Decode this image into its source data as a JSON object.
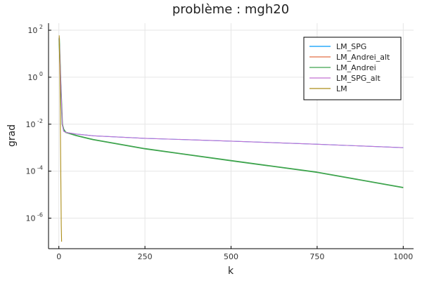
{
  "chart_data": {
    "type": "line",
    "title": "problème : mgh20",
    "xlabel": "k",
    "ylabel": "grad",
    "xlim": [
      -30,
      1030
    ],
    "ylim_log10": [
      -7.3,
      2.3
    ],
    "yscale": "log",
    "x_ticks": [
      0,
      250,
      500,
      750,
      1000
    ],
    "x_tick_labels": [
      "0",
      "250",
      "500",
      "750",
      "1000"
    ],
    "y_tick_exponents": [
      2,
      0,
      -2,
      -4,
      -6
    ],
    "y_tick_base": "10",
    "grid": true,
    "legend_position": "top-right",
    "series": [
      {
        "name": "LM_SPG",
        "color": "#009af9",
        "x": [
          1,
          5,
          10,
          14,
          20,
          50,
          100,
          250,
          500,
          750,
          1000
        ],
        "y": [
          50,
          1,
          0.01,
          0.005,
          0.0045,
          0.0038,
          0.0032,
          0.0025,
          0.0019,
          0.0014,
          0.001
        ]
      },
      {
        "name": "LM_Andrei_alt",
        "color": "#e26f46",
        "x": [
          1,
          5,
          10,
          14,
          20,
          50,
          100,
          250,
          500,
          750,
          1000
        ],
        "y": [
          45,
          0.8,
          0.01,
          0.006,
          0.0045,
          0.0033,
          0.0022,
          0.0009,
          0.00028,
          9e-05,
          2e-05
        ]
      },
      {
        "name": "LM_Andrei",
        "color": "#3da44d",
        "x": [
          1,
          5,
          10,
          14,
          20,
          50,
          100,
          250,
          500,
          750,
          1000
        ],
        "y": [
          45,
          0.8,
          0.01,
          0.006,
          0.0045,
          0.0033,
          0.0022,
          0.0009,
          0.00028,
          9e-05,
          2e-05
        ]
      },
      {
        "name": "LM_SPG_alt",
        "color": "#c271d2",
        "x": [
          1,
          5,
          10,
          14,
          20,
          50,
          100,
          250,
          500,
          750,
          1000
        ],
        "y": [
          50,
          1,
          0.01,
          0.005,
          0.0045,
          0.0038,
          0.0032,
          0.0025,
          0.0019,
          0.0014,
          0.001
        ]
      },
      {
        "name": "LM",
        "color": "#ac8d18",
        "x": [
          1,
          3,
          5,
          7,
          8
        ],
        "y": [
          60,
          1,
          0.001,
          5e-07,
          1e-07
        ]
      }
    ]
  }
}
